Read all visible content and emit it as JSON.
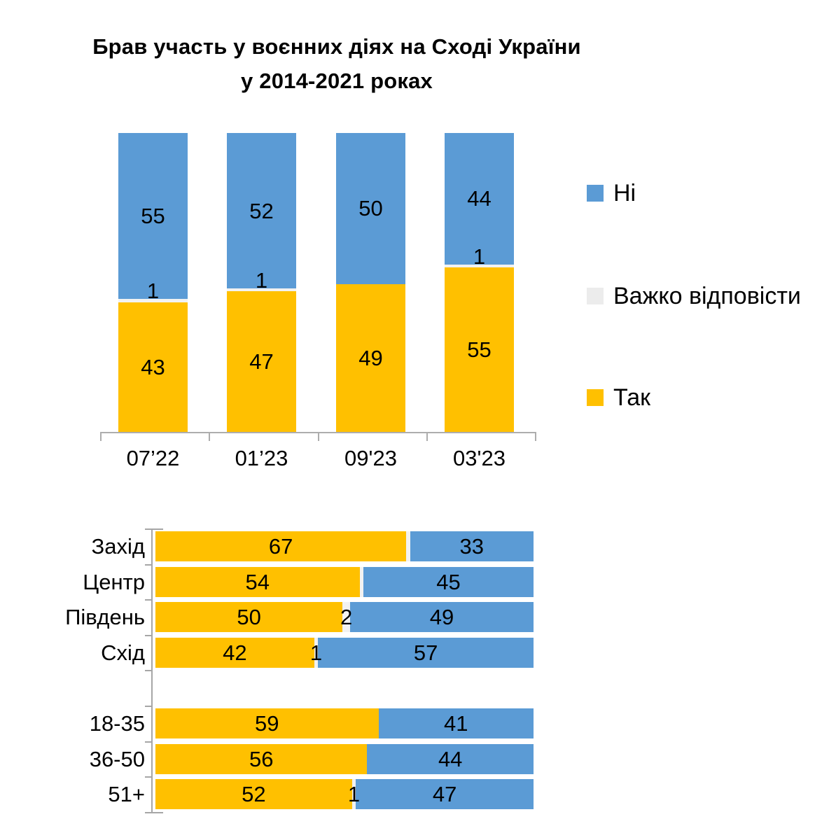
{
  "title": {
    "line1": "Брав участь у воєнних діях на Сході України",
    "line2": "у 2014-2021 роках"
  },
  "legend": {
    "items": [
      {
        "label": "Ні",
        "color": "#5B9BD5"
      },
      {
        "label": "Важко відповісти",
        "color": "#ECECEC"
      },
      {
        "label": "Так",
        "color": "#FFC000"
      }
    ]
  },
  "colors": {
    "yes": "#FFC000",
    "no": "#5B9BD5",
    "dk_sliver": "#F2F2F2",
    "axis": "#A6A6A6",
    "baseline": "#BFBFBF"
  },
  "chart_data": [
    {
      "type": "bar",
      "stacked": true,
      "orientation": "vertical",
      "title": "Брав участь у воєнних діях на Сході України у 2014-2021 роках",
      "categories": [
        "07’22",
        "01’23",
        "09'23",
        "03'23"
      ],
      "series": [
        {
          "name": "Так",
          "color": "#FFC000",
          "values": [
            43,
            47,
            49,
            55
          ],
          "labels": [
            "43",
            "47",
            "49",
            "55"
          ]
        },
        {
          "name": "Важко відповісти",
          "color": "#F2F2F2",
          "values": [
            1,
            1,
            0,
            1
          ],
          "labels": [
            "1",
            "1",
            "",
            "1"
          ]
        },
        {
          "name": "Ні",
          "color": "#5B9BD5",
          "values": [
            55,
            52,
            50,
            44
          ],
          "labels": [
            "55",
            "52",
            "50",
            "44"
          ]
        }
      ],
      "ylim": [
        0,
        100
      ],
      "gridlines": false,
      "legend_position": "right"
    },
    {
      "type": "bar",
      "stacked": true,
      "orientation": "horizontal",
      "categories": [
        "Захід",
        "Центр",
        "Південь",
        "Схід",
        "",
        "18-35",
        "36-50",
        "51+"
      ],
      "series": [
        {
          "name": "Так",
          "color": "#FFC000",
          "values": [
            67,
            54,
            50,
            42,
            null,
            59,
            56,
            52
          ],
          "labels": [
            "67",
            "54",
            "50",
            "42",
            "",
            "59",
            "56",
            "52"
          ]
        },
        {
          "name": "Важко відповісти",
          "color": "#F2F2F2",
          "values": [
            1,
            1,
            2,
            1,
            null,
            0,
            0,
            1
          ],
          "labels": [
            "",
            "",
            "2",
            "1",
            "",
            "",
            "",
            "1"
          ]
        },
        {
          "name": "Ні",
          "color": "#5B9BD5",
          "values": [
            33,
            45,
            49,
            57,
            null,
            41,
            44,
            47
          ],
          "labels": [
            "33",
            "45",
            "49",
            "57",
            "",
            "41",
            "44",
            "47"
          ]
        }
      ],
      "xlim": [
        0,
        100
      ],
      "gridlines": false
    }
  ]
}
